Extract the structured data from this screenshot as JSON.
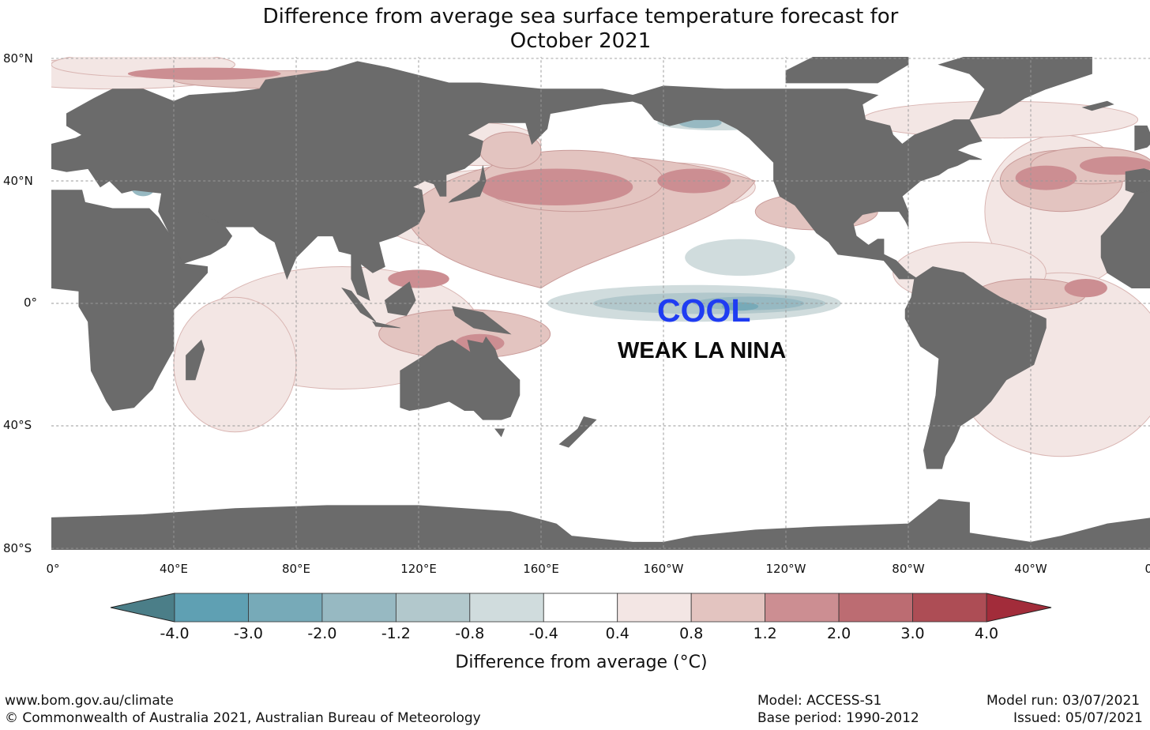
{
  "title": {
    "line1": "Difference from average sea surface temperature forecast for",
    "line2": "October 2021"
  },
  "axes": {
    "lat_labels": [
      "80°N",
      "40°N",
      "0°",
      "40°S",
      "80°S"
    ],
    "lon_labels": [
      "0°",
      "40°E",
      "80°E",
      "120°E",
      "160°E",
      "160°W",
      "120°W",
      "80°W",
      "40°W",
      "0°"
    ]
  },
  "annotations": {
    "cool": "COOL",
    "nina": "WEAK LA NINA"
  },
  "colorbar": {
    "ticks": [
      "-4.0",
      "-3.0",
      "-2.0",
      "-1.2",
      "-0.8",
      "-0.4",
      "0.4",
      "0.8",
      "1.2",
      "2.0",
      "3.0",
      "4.0"
    ],
    "colors": [
      "#5fa0b3",
      "#77aab8",
      "#97b9c2",
      "#b2c8cc",
      "#d0dcdd",
      "#ffffff",
      "#f3e6e4",
      "#e3c4c0",
      "#cc8e92",
      "#bc6c72",
      "#ad4d55"
    ],
    "under_color": "#4b7e88",
    "over_color": "#a22c3a",
    "label": "Difference from average (°C)"
  },
  "colors": {
    "land": "#6b6b6b",
    "cool_text": "#1f3cf2"
  },
  "footer": {
    "site": "www.bom.gov.au/climate",
    "copyright": "© Commonwealth of Australia 2021, Australian Bureau of Meteorology",
    "model": "Model: ACCESS-S1",
    "base_period": "Base period: 1990-2012",
    "model_run": "Model run: 03/07/2021",
    "issued": "Issued: 05/07/2021"
  }
}
